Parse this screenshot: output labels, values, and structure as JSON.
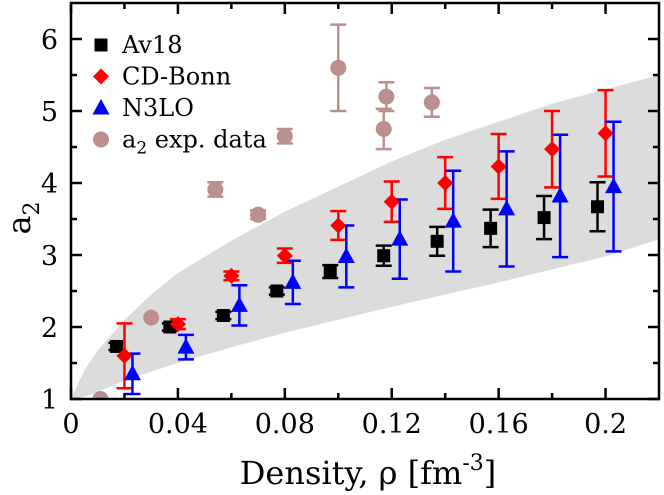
{
  "chart_data": {
    "type": "scatter",
    "title": "",
    "xlabel": "Density, ρ [fm",
    "xlabel_sup": "-3",
    "xlabel_end": "]",
    "ylabel": "a",
    "ylabel_sub": "2",
    "xlim": [
      0,
      0.22
    ],
    "ylim": [
      1,
      6.5
    ],
    "xticks": [
      0,
      0.04,
      0.08,
      0.12,
      0.16,
      0.2
    ],
    "xtick_labels": [
      "0",
      "0.04",
      "0.08",
      "0.12",
      "0.16",
      "0.2"
    ],
    "yticks": [
      1,
      2,
      3,
      4,
      5,
      6
    ],
    "ytick_labels": [
      "1",
      "2",
      "3",
      "4",
      "5",
      "6"
    ],
    "legend_position": "top-left",
    "band": {
      "color": "#dcdcdc",
      "upper": [
        [
          0.0,
          1.0
        ],
        [
          0.005,
          1.4
        ],
        [
          0.01,
          1.67
        ],
        [
          0.02,
          2.1
        ],
        [
          0.03,
          2.45
        ],
        [
          0.04,
          2.75
        ],
        [
          0.06,
          3.2
        ],
        [
          0.08,
          3.6
        ],
        [
          0.1,
          3.95
        ],
        [
          0.12,
          4.3
        ],
        [
          0.14,
          4.6
        ],
        [
          0.16,
          4.85
        ],
        [
          0.18,
          5.1
        ],
        [
          0.2,
          5.3
        ],
        [
          0.22,
          5.5
        ]
      ],
      "lower": [
        [
          0.0,
          1.0
        ],
        [
          0.005,
          1.03
        ],
        [
          0.01,
          1.1
        ],
        [
          0.02,
          1.25
        ],
        [
          0.03,
          1.38
        ],
        [
          0.04,
          1.5
        ],
        [
          0.06,
          1.72
        ],
        [
          0.08,
          1.92
        ],
        [
          0.1,
          2.1
        ],
        [
          0.12,
          2.28
        ],
        [
          0.14,
          2.45
        ],
        [
          0.16,
          2.62
        ],
        [
          0.18,
          2.8
        ],
        [
          0.2,
          2.98
        ],
        [
          0.22,
          3.22
        ]
      ]
    },
    "series": [
      {
        "name": "Av18",
        "marker": "square",
        "color": "#000000",
        "points": [
          {
            "x": 0.017,
            "y": 1.73,
            "err": 0.05
          },
          {
            "x": 0.037,
            "y": 2.0,
            "err": 0.05
          },
          {
            "x": 0.057,
            "y": 2.16,
            "err": 0.05
          },
          {
            "x": 0.077,
            "y": 2.5,
            "err": 0.05
          },
          {
            "x": 0.097,
            "y": 2.77,
            "err": 0.09
          },
          {
            "x": 0.117,
            "y": 2.99,
            "err": 0.14
          },
          {
            "x": 0.137,
            "y": 3.19,
            "err": 0.2
          },
          {
            "x": 0.157,
            "y": 3.37,
            "err": 0.26
          },
          {
            "x": 0.177,
            "y": 3.52,
            "err": 0.3
          },
          {
            "x": 0.197,
            "y": 3.67,
            "err": 0.34
          }
        ]
      },
      {
        "name": "CD-Bonn",
        "marker": "diamond",
        "color": "#ff0000",
        "points": [
          {
            "x": 0.02,
            "y": 1.6,
            "err": 0.45
          },
          {
            "x": 0.04,
            "y": 2.04,
            "err": 0.07
          },
          {
            "x": 0.06,
            "y": 2.71,
            "err": 0.06
          },
          {
            "x": 0.08,
            "y": 2.99,
            "err": 0.1
          },
          {
            "x": 0.1,
            "y": 3.41,
            "err": 0.2
          },
          {
            "x": 0.12,
            "y": 3.74,
            "err": 0.28
          },
          {
            "x": 0.14,
            "y": 4.0,
            "err": 0.36
          },
          {
            "x": 0.16,
            "y": 4.23,
            "err": 0.45
          },
          {
            "x": 0.18,
            "y": 4.47,
            "err": 0.53
          },
          {
            "x": 0.2,
            "y": 4.69,
            "err": 0.6
          }
        ]
      },
      {
        "name": "N3LO",
        "marker": "triangle",
        "color": "#0000ff",
        "points": [
          {
            "x": 0.023,
            "y": 1.35,
            "err": 0.28
          },
          {
            "x": 0.043,
            "y": 1.72,
            "err": 0.17
          },
          {
            "x": 0.063,
            "y": 2.3,
            "err": 0.28
          },
          {
            "x": 0.083,
            "y": 2.62,
            "err": 0.3
          },
          {
            "x": 0.103,
            "y": 2.98,
            "err": 0.43
          },
          {
            "x": 0.123,
            "y": 3.22,
            "err": 0.55
          },
          {
            "x": 0.143,
            "y": 3.47,
            "err": 0.7
          },
          {
            "x": 0.163,
            "y": 3.64,
            "err": 0.8
          },
          {
            "x": 0.183,
            "y": 3.82,
            "err": 0.85
          },
          {
            "x": 0.203,
            "y": 3.95,
            "err": 0.9
          }
        ]
      },
      {
        "name": "a",
        "name_sub": "2",
        "name_end": " exp. data",
        "marker": "circle",
        "color": "#bc8f8f",
        "points": [
          {
            "x": 0.011,
            "y": 1.0,
            "err": 0
          },
          {
            "x": 0.03,
            "y": 2.13,
            "err": 0
          },
          {
            "x": 0.054,
            "y": 3.91,
            "err": 0.1
          },
          {
            "x": 0.07,
            "y": 3.56,
            "err": 0.06
          },
          {
            "x": 0.08,
            "y": 4.65,
            "err": 0.1
          },
          {
            "x": 0.1,
            "y": 5.6,
            "err": 0.6
          },
          {
            "x": 0.117,
            "y": 4.75,
            "err": 0.28
          },
          {
            "x": 0.118,
            "y": 5.2,
            "err": 0.2
          },
          {
            "x": 0.135,
            "y": 5.12,
            "err": 0.2
          }
        ]
      }
    ]
  }
}
